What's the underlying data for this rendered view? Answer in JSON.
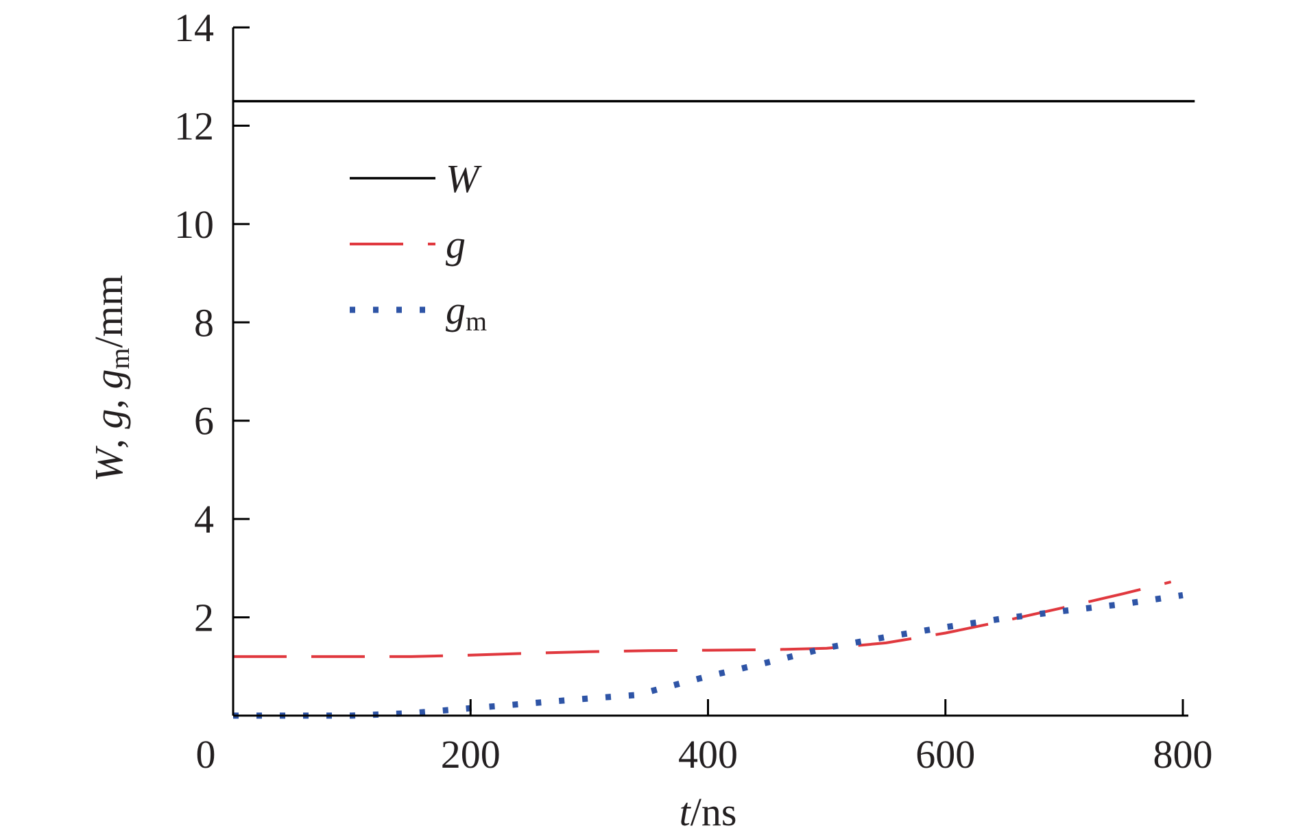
{
  "chart_data": {
    "type": "line",
    "title": "",
    "xlabel": {
      "var": "t",
      "unit": "/ns"
    },
    "ylabel": {
      "w": "W",
      "sep1": ", ",
      "g1": "g",
      "sep2": ", ",
      "g2": "g",
      "sub": "m",
      "unit": "/mm"
    },
    "xlim": [
      0,
      800
    ],
    "ylim": [
      0,
      14
    ],
    "xticks": [
      0,
      200,
      400,
      600,
      800
    ],
    "yticks": [
      2,
      4,
      6,
      8,
      10,
      12,
      14
    ],
    "grid": false,
    "legend_position": "upper-left",
    "series": [
      {
        "name": "W",
        "name_sub": "",
        "style": "solid",
        "color": "#000000",
        "x": [
          0,
          810
        ],
        "y": [
          12.5,
          12.5
        ]
      },
      {
        "name": "g",
        "name_sub": "",
        "style": "dashed",
        "color": "#e0383e",
        "x": [
          0,
          50,
          100,
          150,
          200,
          250,
          300,
          350,
          400,
          450,
          500,
          550,
          600,
          650,
          700,
          750,
          790
        ],
        "y": [
          1.2,
          1.2,
          1.2,
          1.2,
          1.23,
          1.27,
          1.3,
          1.32,
          1.33,
          1.34,
          1.37,
          1.48,
          1.68,
          1.93,
          2.2,
          2.48,
          2.72
        ]
      },
      {
        "name": "g",
        "name_sub": "m",
        "style": "dotted",
        "color": "#2e54a6",
        "x": [
          0,
          50,
          100,
          150,
          200,
          250,
          300,
          340,
          360,
          400,
          450,
          500,
          550,
          600,
          650,
          700,
          750,
          800
        ],
        "y": [
          0,
          0,
          0,
          0.05,
          0.15,
          0.25,
          0.35,
          0.42,
          0.55,
          0.8,
          1.08,
          1.38,
          1.6,
          1.8,
          1.98,
          2.13,
          2.27,
          2.45
        ]
      }
    ]
  }
}
